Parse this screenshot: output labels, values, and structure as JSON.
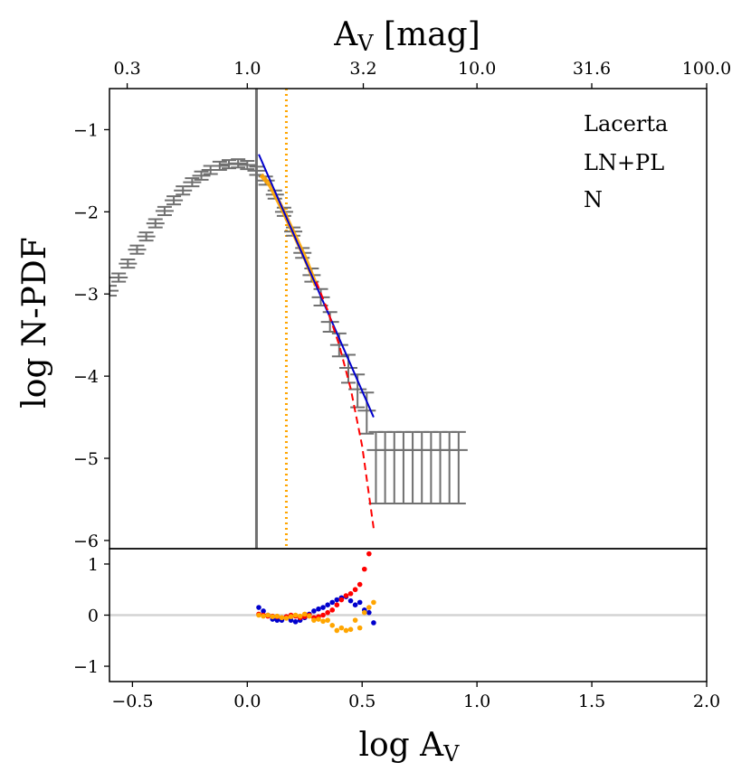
{
  "chart_data": [
    {
      "type": "line",
      "panel": "main",
      "top_axis": {
        "label": "A",
        "label_sub": "V",
        "label_rest": " [mag]",
        "ticks": [
          {
            "pos": -0.5229,
            "label": "0.3"
          },
          {
            "pos": 0.0,
            "label": "1.0"
          },
          {
            "pos": 0.5051,
            "label": "3.2"
          },
          {
            "pos": 1.0,
            "label": "10.0"
          },
          {
            "pos": 1.4997,
            "label": "31.6"
          },
          {
            "pos": 2.0,
            "label": "100.0"
          }
        ]
      },
      "xlabel": "log A",
      "xlabel_sub": "V",
      "ylabel": "log N-PDF",
      "xlim": [
        -0.6,
        2.0
      ],
      "ylim": [
        -6.1,
        -0.5
      ],
      "x_ticks": [
        {
          "value": -0.5,
          "label": "−0.5"
        },
        {
          "value": 0.0,
          "label": "0.0"
        },
        {
          "value": 0.5,
          "label": "0.5"
        },
        {
          "value": 1.0,
          "label": "1.0"
        },
        {
          "value": 1.5,
          "label": "1.5"
        },
        {
          "value": 2.0,
          "label": "2.0"
        }
      ],
      "y_ticks": [
        {
          "value": -1,
          "label": "−1"
        },
        {
          "value": -2,
          "label": "−2"
        },
        {
          "value": -3,
          "label": "−3"
        },
        {
          "value": -4,
          "label": "−4"
        },
        {
          "value": -5,
          "label": "−5"
        },
        {
          "value": -6,
          "label": "−6"
        }
      ],
      "annotations": [
        "Lacerta",
        "LN+PL",
        "N"
      ],
      "vlines": [
        {
          "name": "completeness-limit",
          "x": 0.04,
          "color": "#707070",
          "style": "solid"
        },
        {
          "name": "transition-point",
          "x": 0.17,
          "color": "#ffa500",
          "style": "dotted"
        }
      ],
      "series": [
        {
          "name": "N-PDF data",
          "color": "#707070",
          "style": "errorbar",
          "x": [
            -0.6,
            -0.56,
            -0.52,
            -0.48,
            -0.44,
            -0.4,
            -0.36,
            -0.32,
            -0.28,
            -0.24,
            -0.2,
            -0.16,
            -0.12,
            -0.08,
            -0.04,
            0.0,
            0.04,
            0.08,
            0.12,
            0.16,
            0.2,
            0.24,
            0.28,
            0.32,
            0.36,
            0.4,
            0.44,
            0.48,
            0.52,
            0.56,
            0.6,
            0.64,
            0.68,
            0.72,
            0.76,
            0.8,
            0.84,
            0.88,
            0.92
          ],
          "y": [
            -2.96,
            -2.8,
            -2.63,
            -2.46,
            -2.3,
            -2.14,
            -1.99,
            -1.86,
            -1.74,
            -1.64,
            -1.56,
            -1.49,
            -1.44,
            -1.42,
            -1.41,
            -1.43,
            -1.5,
            -1.62,
            -1.79,
            -2.0,
            -2.24,
            -2.5,
            -2.77,
            -3.04,
            -3.34,
            -3.62,
            -3.9,
            -4.16,
            -4.42,
            -4.9,
            -4.9,
            -4.9,
            -4.9,
            -4.9,
            -4.9,
            -4.9,
            -4.9,
            -4.9,
            -4.9
          ],
          "yerr_low": [
            0.06,
            0.05,
            0.05,
            0.05,
            0.05,
            0.05,
            0.05,
            0.05,
            0.05,
            0.05,
            0.05,
            0.05,
            0.05,
            0.05,
            0.05,
            0.05,
            0.05,
            0.05,
            0.05,
            0.05,
            0.05,
            0.06,
            0.08,
            0.1,
            0.12,
            0.14,
            0.18,
            0.22,
            0.28,
            0.65,
            0.65,
            0.65,
            0.65,
            0.65,
            0.65,
            0.65,
            0.65,
            0.65,
            0.65
          ],
          "yerr_high": [
            0.06,
            0.05,
            0.05,
            0.05,
            0.05,
            0.05,
            0.05,
            0.05,
            0.05,
            0.05,
            0.05,
            0.05,
            0.05,
            0.05,
            0.05,
            0.05,
            0.05,
            0.05,
            0.05,
            0.05,
            0.05,
            0.06,
            0.08,
            0.1,
            0.12,
            0.14,
            0.16,
            0.18,
            0.22,
            0.22,
            0.22,
            0.22,
            0.22,
            0.22,
            0.22,
            0.22,
            0.22,
            0.22,
            0.22
          ]
        },
        {
          "name": "power-law segment (orange)",
          "color": "#ffa500",
          "style": "line",
          "x": [
            0.06,
            0.1,
            0.15,
            0.2,
            0.25,
            0.3
          ],
          "y": [
            -1.55,
            -1.68,
            -1.95,
            -2.25,
            -2.55,
            -2.9
          ]
        },
        {
          "name": "power-law fit",
          "color": "#0000cd",
          "style": "line",
          "x": [
            0.05,
            0.55
          ],
          "y": [
            -1.3,
            -4.5
          ]
        },
        {
          "name": "log-normal fit",
          "color": "#ff0000",
          "style": "dashed",
          "x": [
            0.3,
            0.35,
            0.4,
            0.45,
            0.5,
            0.55
          ],
          "y": [
            -2.85,
            -3.2,
            -3.62,
            -4.15,
            -4.85,
            -5.85
          ]
        }
      ]
    },
    {
      "type": "scatter",
      "panel": "residuals",
      "xlim": [
        -0.6,
        2.0
      ],
      "ylim": [
        -1.3,
        1.3
      ],
      "y_ticks": [
        {
          "value": 1,
          "label": "1"
        },
        {
          "value": 0,
          "label": "0"
        },
        {
          "value": -1,
          "label": "−1"
        }
      ],
      "hline": {
        "y": 0,
        "color": "#d3d3d3"
      },
      "series": [
        {
          "name": "blue residuals",
          "color": "#0000cd",
          "x": [
            0.05,
            0.07,
            0.09,
            0.11,
            0.13,
            0.15,
            0.17,
            0.19,
            0.21,
            0.23,
            0.25,
            0.27,
            0.29,
            0.31,
            0.33,
            0.35,
            0.37,
            0.39,
            0.41,
            0.43,
            0.45,
            0.47,
            0.49,
            0.51,
            0.53,
            0.55
          ],
          "y": [
            0.15,
            0.08,
            0.0,
            -0.08,
            -0.1,
            -0.1,
            -0.05,
            -0.1,
            -0.13,
            -0.1,
            -0.05,
            0.02,
            0.08,
            0.12,
            0.15,
            0.2,
            0.25,
            0.3,
            0.34,
            0.36,
            0.28,
            0.2,
            0.25,
            0.1,
            0.05,
            -0.15
          ]
        },
        {
          "name": "red residuals",
          "color": "#ff0000",
          "x": [
            0.05,
            0.07,
            0.09,
            0.11,
            0.13,
            0.15,
            0.17,
            0.19,
            0.21,
            0.23,
            0.25,
            0.27,
            0.29,
            0.31,
            0.33,
            0.35,
            0.37,
            0.39,
            0.41,
            0.43,
            0.45,
            0.47,
            0.49,
            0.51,
            0.53
          ],
          "y": [
            0.02,
            0.0,
            -0.02,
            -0.02,
            -0.03,
            -0.05,
            -0.03,
            0.0,
            -0.02,
            -0.05,
            -0.03,
            0.0,
            -0.05,
            -0.03,
            0.0,
            0.05,
            0.1,
            0.2,
            0.3,
            0.38,
            0.42,
            0.5,
            0.6,
            0.9,
            1.2
          ]
        },
        {
          "name": "orange residuals",
          "color": "#ffa500",
          "x": [
            0.05,
            0.07,
            0.09,
            0.11,
            0.13,
            0.15,
            0.17,
            0.19,
            0.21,
            0.23,
            0.25,
            0.27,
            0.29,
            0.31,
            0.33,
            0.35,
            0.37,
            0.39,
            0.41,
            0.43,
            0.45,
            0.47,
            0.49,
            0.51,
            0.53,
            0.55
          ],
          "y": [
            0.0,
            -0.02,
            0.0,
            -0.03,
            -0.02,
            -0.05,
            -0.06,
            -0.03,
            0.0,
            -0.02,
            0.02,
            -0.02,
            -0.1,
            -0.08,
            -0.12,
            -0.1,
            -0.2,
            -0.3,
            -0.25,
            -0.3,
            -0.28,
            -0.1,
            -0.25,
            0.05,
            0.15,
            0.25
          ]
        }
      ]
    }
  ]
}
